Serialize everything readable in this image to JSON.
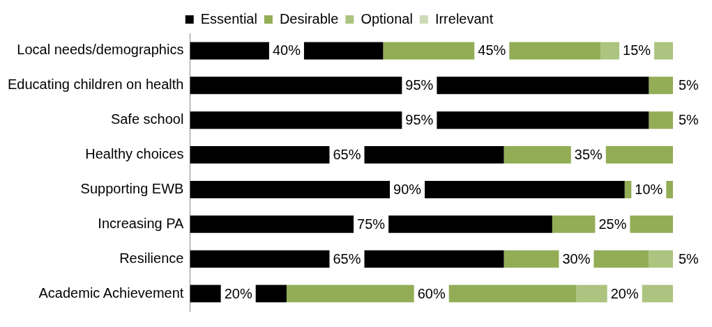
{
  "chart_data": {
    "type": "bar",
    "orientation": "horizontal",
    "stacked": true,
    "categories": [
      "Local needs/demographics",
      "Educating children on health",
      "Safe school",
      "Healthy choices",
      "Supporting EWB",
      "Increasing PA",
      "Resilience",
      "Academic Achievement"
    ],
    "series": [
      {
        "name": "Essential",
        "color": "#000000",
        "values": [
          40,
          95,
          95,
          65,
          90,
          75,
          65,
          20
        ],
        "value_labels": [
          "40%",
          "95%",
          "95%",
          "65%",
          "90%",
          "75%",
          "65%",
          "20%"
        ]
      },
      {
        "name": "Desirable",
        "color": "#92ad56",
        "values": [
          45,
          5,
          5,
          35,
          10,
          25,
          30,
          60
        ],
        "value_labels": [
          "45%",
          "5%",
          "5%",
          "35%",
          "10%",
          "25%",
          "30%",
          "60%"
        ]
      },
      {
        "name": "Optional",
        "color": "#acc47f",
        "values": [
          15,
          null,
          null,
          null,
          null,
          null,
          5,
          20
        ],
        "value_labels": [
          "15%",
          null,
          null,
          null,
          null,
          null,
          "5%",
          "20%"
        ]
      },
      {
        "name": "Irrelevant",
        "color": "#cddbb6",
        "values": [
          null,
          null,
          null,
          null,
          null,
          null,
          null,
          null
        ]
      }
    ],
    "xlim": [
      0,
      100
    ],
    "tick_labels": "y",
    "grid": false,
    "legend": "top"
  }
}
